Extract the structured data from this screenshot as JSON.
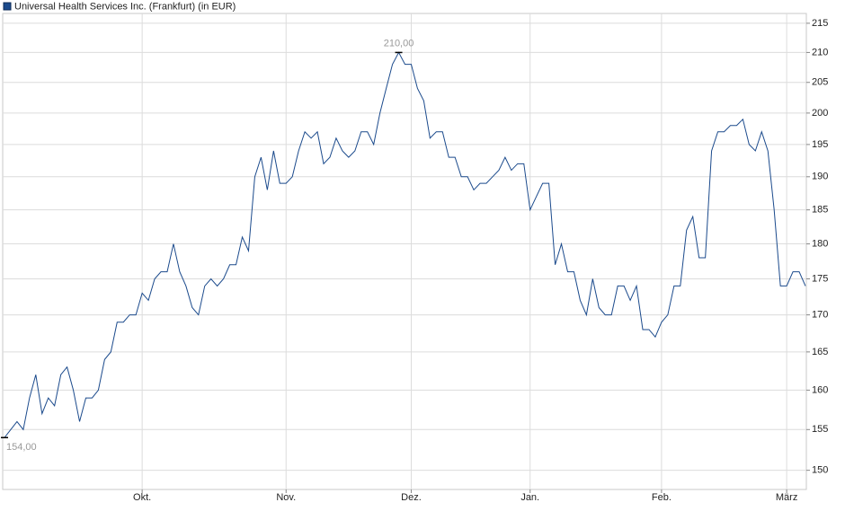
{
  "chart_data": {
    "type": "line",
    "log": true,
    "grid": true,
    "legend": "top-left",
    "yaxis_side": "right",
    "categories": [
      null,
      null,
      null,
      null,
      null,
      null,
      null,
      null,
      null,
      null,
      null,
      null,
      null,
      null,
      null,
      null,
      null,
      null,
      null,
      null,
      null,
      null,
      "Okt.",
      null,
      null,
      null,
      null,
      null,
      null,
      null,
      null,
      null,
      null,
      null,
      null,
      null,
      null,
      null,
      null,
      null,
      null,
      null,
      null,
      null,
      null,
      "Nov.",
      null,
      null,
      null,
      null,
      null,
      null,
      null,
      null,
      null,
      null,
      null,
      null,
      null,
      null,
      null,
      null,
      null,
      null,
      null,
      "Dez.",
      null,
      null,
      null,
      null,
      null,
      null,
      null,
      null,
      null,
      null,
      null,
      null,
      null,
      null,
      null,
      null,
      null,
      null,
      "Jan.",
      null,
      null,
      null,
      null,
      null,
      null,
      null,
      null,
      null,
      null,
      null,
      null,
      null,
      null,
      null,
      null,
      null,
      null,
      null,
      null,
      "Feb.",
      null,
      null,
      null,
      null,
      null,
      null,
      null,
      null,
      null,
      null,
      null,
      null,
      null,
      null,
      null,
      null,
      null,
      null,
      null,
      "März",
      null,
      null,
      null
    ],
    "series": [
      {
        "name": "Universal Health Services Inc. (Frankfurt) (in EUR)",
        "color": "#1b4a8c",
        "values": [
          154,
          155,
          156,
          155,
          159,
          162,
          157,
          159,
          158,
          162,
          163,
          160,
          156,
          159,
          159,
          160,
          164,
          165,
          169,
          169,
          170,
          170,
          173,
          172,
          175,
          176,
          176,
          180,
          176,
          174,
          171,
          170,
          174,
          175,
          174,
          175,
          177,
          177,
          181,
          179,
          190,
          193,
          188,
          194,
          189,
          189,
          190,
          194,
          197,
          196,
          197,
          192,
          193,
          196,
          194,
          193,
          194,
          197,
          197,
          195,
          200,
          204,
          208,
          210,
          208,
          208,
          204,
          202,
          196,
          197,
          197,
          193,
          193,
          190,
          190,
          188,
          189,
          189,
          190,
          191,
          193,
          191,
          192,
          192,
          185,
          187,
          189,
          189,
          177,
          180,
          176,
          176,
          172,
          170,
          175,
          171,
          170,
          170,
          174,
          174,
          172,
          174,
          168,
          168,
          167,
          169,
          170,
          174,
          174,
          182,
          184,
          178,
          178,
          194,
          197,
          197,
          198,
          198,
          199,
          195,
          194,
          197,
          194,
          185,
          174,
          174,
          176,
          176,
          174
        ],
        "value_labels": [
          "154,00",
          null,
          null,
          null,
          null,
          null,
          null,
          null,
          null,
          null,
          null,
          null,
          null,
          null,
          null,
          null,
          null,
          null,
          null,
          null,
          null,
          null,
          null,
          null,
          null,
          null,
          null,
          null,
          null,
          null,
          null,
          null,
          null,
          null,
          null,
          null,
          null,
          null,
          null,
          null,
          null,
          null,
          null,
          null,
          null,
          null,
          null,
          null,
          null,
          null,
          null,
          null,
          null,
          null,
          null,
          null,
          null,
          null,
          null,
          null,
          null,
          null,
          null,
          "210,00",
          null,
          null,
          null,
          null,
          null,
          null,
          null,
          null,
          null,
          null,
          null,
          null,
          null,
          null,
          null,
          null,
          null,
          null,
          null,
          null,
          null,
          null,
          null,
          null,
          null,
          null,
          null,
          null,
          null,
          null,
          null,
          null,
          null,
          null,
          null,
          null,
          null,
          null,
          null,
          null,
          null,
          null,
          null,
          null,
          null,
          null,
          null,
          null,
          null,
          null,
          null,
          null,
          null,
          null,
          null,
          null,
          null,
          null,
          null,
          null,
          null,
          null,
          null,
          null,
          null
        ]
      }
    ],
    "ylim": [
      147.7,
      216.7
    ],
    "yticks": [
      150,
      155,
      160,
      165,
      170,
      175,
      180,
      185,
      190,
      195,
      200,
      205,
      210,
      215
    ]
  }
}
